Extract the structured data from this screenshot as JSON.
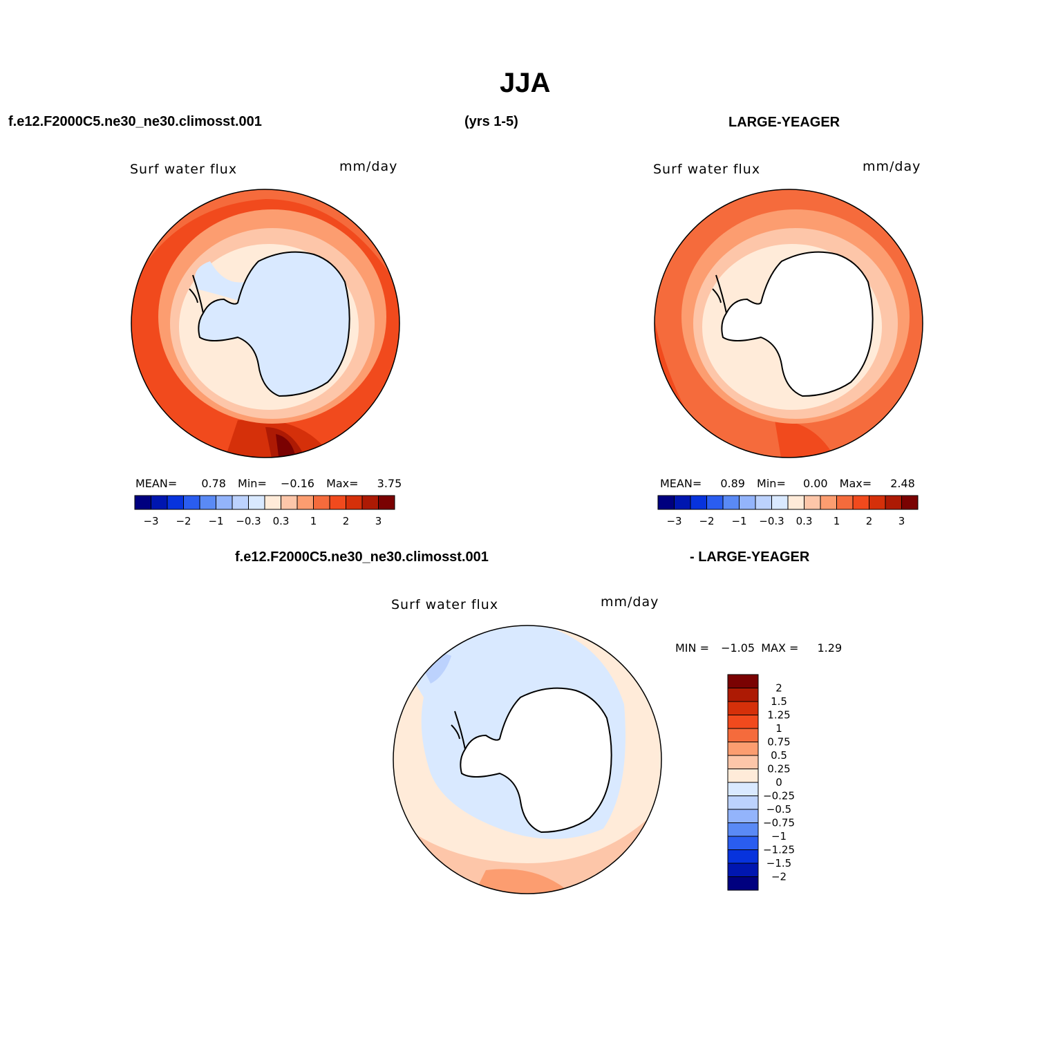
{
  "title": "JJA",
  "top_left_case": "f.e12.F2000C5.ne30_ne30.climosst.001",
  "years": "(yrs 1-5)",
  "top_right_case": "LARGE-YEAGER",
  "bottom_case_a": "f.e12.F2000C5.ne30_ne30.climosst.001",
  "bottom_case_b": "- LARGE-YEAGER",
  "panels": [
    {
      "variable": "Surf water flux",
      "units": "mm/day",
      "stats": {
        "mean_label": "MEAN=",
        "mean": "0.78",
        "min_label": "Min=",
        "min": "−0.16",
        "max_label": "Max=",
        "max": "3.75"
      }
    },
    {
      "variable": "Surf water flux",
      "units": "mm/day",
      "stats": {
        "mean_label": "MEAN=",
        "mean": "0.89",
        "min_label": "Min=",
        "min": "0.00",
        "max_label": "Max=",
        "max": "2.48"
      }
    },
    {
      "variable": "Surf water flux",
      "units": "mm/day",
      "stats": {
        "min_label": "MIN =",
        "min": "−1.05",
        "max_label": "MAX =",
        "max": "1.29"
      }
    }
  ],
  "colorbar_horizontal": {
    "colors": [
      "#00007f",
      "#0016b0",
      "#0733dd",
      "#2a5df0",
      "#5a8af5",
      "#93b4fb",
      "#bcd2fd",
      "#d9e9ff",
      "#ffebd9",
      "#fdc6a9",
      "#fc9d70",
      "#f56b3c",
      "#f14a1d",
      "#d5300a",
      "#ad1a04",
      "#7a0202"
    ],
    "ticks": [
      "−3",
      "−2",
      "−1",
      "−0.3",
      "0.3",
      "1",
      "2",
      "3"
    ]
  },
  "colorbar_vertical": {
    "colors": [
      "#7a0202",
      "#ad1a04",
      "#d5300a",
      "#f14a1d",
      "#f56b3c",
      "#fc9d70",
      "#fdc6a9",
      "#ffebd9",
      "#d9e9ff",
      "#bcd2fd",
      "#93b4fb",
      "#5a8af5",
      "#2a5df0",
      "#0733dd",
      "#0016b0",
      "#00007f"
    ],
    "ticks": [
      "2",
      "1.5",
      "1.25",
      "1",
      "0.75",
      "0.5",
      "0.25",
      "0",
      "−0.25",
      "−0.5",
      "−0.75",
      "−1",
      "−1.25",
      "−1.5",
      "−2"
    ]
  }
}
